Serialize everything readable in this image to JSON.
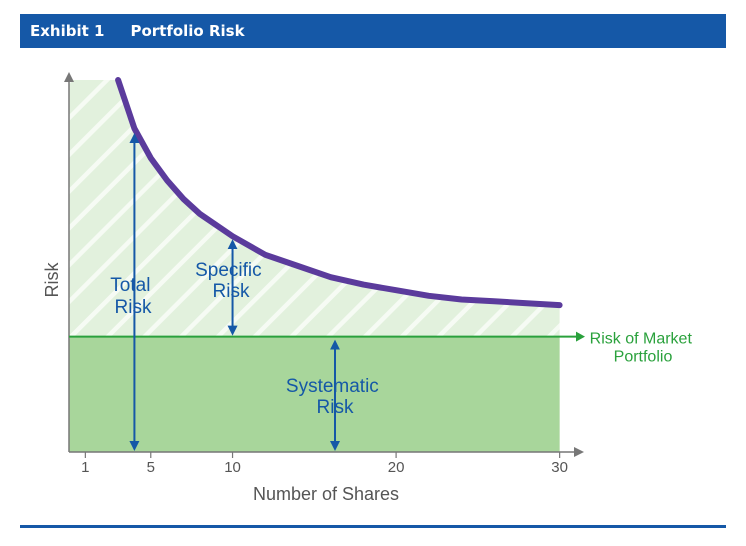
{
  "header": {
    "exhibit_label": "Exhibit 1",
    "title": "Portfolio Risk"
  },
  "colors": {
    "header_bg": "#1558a7",
    "curve": "#5b3b9c",
    "market_line": "#2aa13c",
    "systematic_fill": "#a8d69b",
    "specific_fill": "#e2f1dd",
    "arrow": "#1558a7"
  },
  "chart_data": {
    "type": "area",
    "title": "Portfolio Risk",
    "xlabel": "Number of Shares",
    "ylabel": "Risk",
    "xlim": [
      0,
      31
    ],
    "ylim": [
      0,
      1
    ],
    "x_ticks": [
      1,
      5,
      10,
      20,
      30
    ],
    "grid": false,
    "market_risk_level": 0.31,
    "series": [
      {
        "name": "Total Risk",
        "x": [
          3,
          4,
          5,
          6,
          7,
          8,
          10,
          12,
          14,
          16,
          18,
          20,
          22,
          24,
          26,
          28,
          30
        ],
        "y": [
          1.0,
          0.87,
          0.79,
          0.73,
          0.68,
          0.64,
          0.58,
          0.53,
          0.5,
          0.47,
          0.45,
          0.435,
          0.42,
          0.41,
          0.405,
          0.4,
          0.395
        ]
      }
    ],
    "annotations": {
      "total_risk": [
        "Total",
        "Risk"
      ],
      "specific_risk": [
        "Specific",
        "Risk"
      ],
      "systematic_risk": [
        "Systematic",
        "Risk"
      ],
      "market_portfolio": [
        "Risk of Market",
        "Portfolio"
      ]
    }
  }
}
